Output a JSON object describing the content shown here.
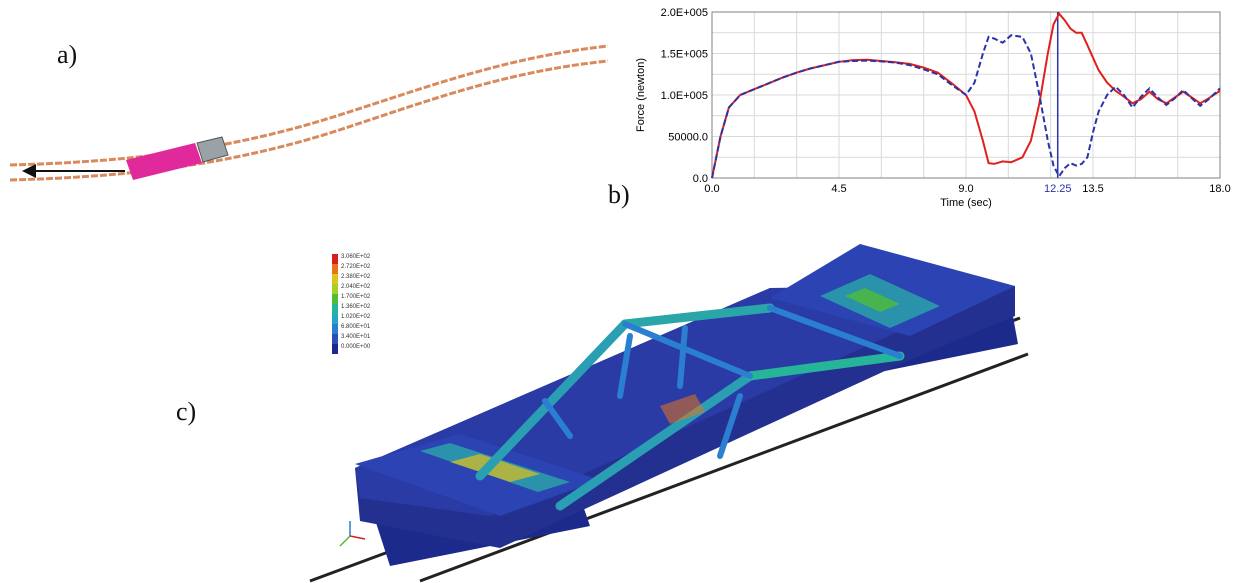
{
  "labels": {
    "a": "a)",
    "b": "b)",
    "c": "c)"
  },
  "chart_data": {
    "type": "line",
    "xlabel": "Time (sec)",
    "ylabel": "Force (newton)",
    "xlim": [
      0,
      18
    ],
    "ylim": [
      0,
      200000
    ],
    "xticks": [
      "0.0",
      "4.5",
      "9.0",
      "12.25",
      "13.5",
      "18.0"
    ],
    "xtick_values": [
      0,
      4.5,
      9.0,
      12.25,
      13.5,
      18.0
    ],
    "yticks": [
      "0.0",
      "50000.0",
      "1.0E+005",
      "1.5E+005",
      "2.0E+005"
    ],
    "ytick_values": [
      0,
      50000,
      100000,
      150000,
      200000
    ],
    "marker_x": 12.25,
    "grid": true,
    "series": [
      {
        "style": "solid",
        "color": "#e0201c",
        "x": [
          0,
          0.3,
          0.6,
          1.0,
          1.5,
          2.0,
          2.5,
          3.0,
          3.5,
          4.0,
          4.5,
          5.0,
          5.5,
          6.0,
          6.5,
          7.0,
          7.5,
          8.0,
          8.5,
          9.0,
          9.3,
          9.6,
          9.8,
          10.0,
          10.3,
          10.6,
          11.0,
          11.3,
          11.6,
          11.9,
          12.1,
          12.3,
          12.5,
          12.7,
          12.9,
          13.1,
          13.3,
          13.5,
          13.7,
          14.0,
          14.3,
          14.6,
          14.9,
          15.2,
          15.5,
          15.8,
          16.1,
          16.4,
          16.7,
          17.0,
          17.3,
          17.6,
          18.0
        ],
        "y": [
          0,
          50000,
          85000,
          100000,
          107000,
          114000,
          121000,
          127000,
          132000,
          136000,
          140000,
          142000,
          142500,
          141000,
          139500,
          137500,
          133000,
          127000,
          114000,
          100000,
          80000,
          45000,
          18000,
          17000,
          20000,
          19000,
          25000,
          45000,
          90000,
          150000,
          185000,
          198000,
          190000,
          180000,
          175000,
          175000,
          160000,
          145000,
          130000,
          115000,
          105000,
          98000,
          90000,
          95000,
          104000,
          95000,
          90000,
          97000,
          104000,
          97000,
          90000,
          96000,
          105000
        ]
      },
      {
        "style": "dashed",
        "color": "#2a33a8",
        "x": [
          0,
          0.3,
          0.6,
          1.0,
          1.5,
          2.0,
          2.5,
          3.0,
          3.5,
          4.0,
          4.5,
          5.0,
          5.5,
          6.0,
          6.5,
          7.0,
          7.5,
          8.0,
          8.5,
          9.0,
          9.3,
          9.6,
          9.8,
          10.0,
          10.3,
          10.6,
          11.0,
          11.3,
          11.6,
          11.9,
          12.1,
          12.3,
          12.5,
          12.7,
          12.9,
          13.1,
          13.3,
          13.5,
          13.7,
          14.0,
          14.3,
          14.6,
          14.9,
          15.2,
          15.5,
          15.8,
          16.1,
          16.4,
          16.7,
          17.0,
          17.3,
          17.6,
          18.0
        ],
        "y": [
          0,
          50000,
          85000,
          100000,
          107000,
          114000,
          121000,
          127000,
          132000,
          136000,
          140000,
          141000,
          141500,
          140500,
          139000,
          136000,
          131000,
          125000,
          112000,
          100000,
          115000,
          150000,
          170000,
          168000,
          163000,
          172000,
          170000,
          150000,
          100000,
          45000,
          15000,
          2000,
          12000,
          18000,
          15000,
          17000,
          25000,
          55000,
          80000,
          100000,
          110000,
          100000,
          85000,
          98000,
          108000,
          97000,
          88000,
          96000,
          106000,
          96000,
          87000,
          95000,
          108000
        ]
      }
    ]
  },
  "legend_c": {
    "values": [
      "3.060E+02",
      "2.720E+02",
      "2.380E+02",
      "2.040E+02",
      "1.700E+02",
      "1.360E+02",
      "1.020E+02",
      "6.800E+01",
      "3.400E+01",
      "0.000E+00"
    ],
    "colors": [
      "#d81f1f",
      "#e6751a",
      "#e2c21d",
      "#a9cf26",
      "#4fbd3a",
      "#27b59a",
      "#23a7c9",
      "#2a7fd1",
      "#2a4fb6",
      "#1c2a8c"
    ]
  }
}
